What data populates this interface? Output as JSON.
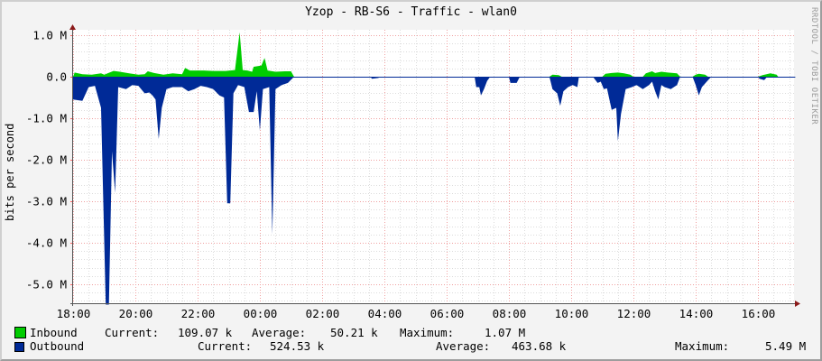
{
  "title": "Yzop - RB-S6 - Traffic - wlan0",
  "watermark": "RRDTOOL / TOBI OETIKER",
  "chart_data": {
    "type": "area",
    "title": "Yzop - RB-S6 - Traffic - wlan0",
    "xlabel": "",
    "ylabel": "bits per second",
    "x_ticks": [
      "18:00",
      "20:00",
      "22:00",
      "00:00",
      "02:00",
      "04:00",
      "06:00",
      "08:00",
      "10:00",
      "12:00",
      "14:00",
      "16:00"
    ],
    "y_ticks": [
      "1.0 M",
      "0.0",
      "-1.0 M",
      "-2.0 M",
      "-3.0 M",
      "-4.0 M",
      "-5.0 M"
    ],
    "y_tick_values": [
      1.0,
      0.0,
      -1.0,
      -2.0,
      -3.0,
      -4.0,
      -5.0
    ],
    "ylim": [
      -5.45,
      1.0
    ],
    "x_unit": "hours since 18:00",
    "xlim": [
      0,
      23.2
    ],
    "grid": true,
    "legend_position": "bottom",
    "series": [
      {
        "name": "Inbound",
        "color": "#00cc00",
        "direction": "positive",
        "current": "109.07 k",
        "average": "50.21 k",
        "maximum": "1.07 M",
        "points": [
          [
            0.0,
            0.0
          ],
          [
            0.05,
            0.1
          ],
          [
            0.3,
            0.06
          ],
          [
            0.6,
            0.05
          ],
          [
            0.9,
            0.08
          ],
          [
            1.0,
            0.05
          ],
          [
            1.3,
            0.14
          ],
          [
            1.5,
            0.12
          ],
          [
            1.8,
            0.08
          ],
          [
            2.1,
            0.05
          ],
          [
            2.3,
            0.06
          ],
          [
            2.4,
            0.13
          ],
          [
            2.6,
            0.09
          ],
          [
            2.9,
            0.05
          ],
          [
            3.2,
            0.08
          ],
          [
            3.5,
            0.06
          ],
          [
            3.6,
            0.21
          ],
          [
            3.75,
            0.15
          ],
          [
            4.2,
            0.15
          ],
          [
            4.5,
            0.14
          ],
          [
            4.9,
            0.14
          ],
          [
            5.05,
            0.15
          ],
          [
            5.2,
            0.16
          ],
          [
            5.35,
            1.07
          ],
          [
            5.45,
            0.16
          ],
          [
            5.6,
            0.15
          ],
          [
            5.75,
            0.12
          ],
          [
            5.8,
            0.24
          ],
          [
            6.05,
            0.27
          ],
          [
            6.15,
            0.45
          ],
          [
            6.25,
            0.15
          ],
          [
            6.5,
            0.12
          ],
          [
            6.8,
            0.13
          ],
          [
            7.0,
            0.13
          ],
          [
            7.1,
            0.0
          ],
          [
            9.0,
            0.0
          ],
          [
            15.3,
            0.0
          ],
          [
            15.4,
            0.05
          ],
          [
            15.6,
            0.04
          ],
          [
            15.7,
            0.0
          ],
          [
            17.0,
            0.0
          ],
          [
            17.1,
            0.07
          ],
          [
            17.3,
            0.09
          ],
          [
            17.5,
            0.1
          ],
          [
            17.7,
            0.08
          ],
          [
            17.9,
            0.05
          ],
          [
            18.0,
            0.0
          ],
          [
            18.3,
            0.0
          ],
          [
            18.4,
            0.08
          ],
          [
            18.6,
            0.13
          ],
          [
            18.7,
            0.09
          ],
          [
            18.9,
            0.12
          ],
          [
            19.1,
            0.1
          ],
          [
            19.4,
            0.08
          ],
          [
            19.5,
            0.0
          ],
          [
            19.9,
            0.0
          ],
          [
            20.0,
            0.05
          ],
          [
            20.1,
            0.07
          ],
          [
            20.3,
            0.05
          ],
          [
            20.4,
            0.0
          ],
          [
            22.0,
            0.0
          ],
          [
            22.15,
            0.04
          ],
          [
            22.4,
            0.08
          ],
          [
            22.6,
            0.05
          ],
          [
            22.65,
            0.0
          ],
          [
            23.0,
            0.0
          ],
          [
            23.2,
            0.0
          ]
        ]
      },
      {
        "name": "Outbound",
        "color": "#002a97",
        "direction": "negative",
        "current": "524.53 k",
        "average": "463.68 k",
        "maximum": "5.49 M",
        "points": [
          [
            0.0,
            -0.55
          ],
          [
            0.3,
            -0.58
          ],
          [
            0.5,
            -0.25
          ],
          [
            0.7,
            -0.22
          ],
          [
            0.9,
            -0.75
          ],
          [
            1.05,
            -5.49
          ],
          [
            1.15,
            -5.49
          ],
          [
            1.25,
            -1.8
          ],
          [
            1.35,
            -2.8
          ],
          [
            1.45,
            -0.25
          ],
          [
            1.7,
            -0.3
          ],
          [
            1.9,
            -0.2
          ],
          [
            2.1,
            -0.22
          ],
          [
            2.3,
            -0.4
          ],
          [
            2.45,
            -0.38
          ],
          [
            2.55,
            -0.45
          ],
          [
            2.65,
            -0.55
          ],
          [
            2.75,
            -1.5
          ],
          [
            2.85,
            -0.75
          ],
          [
            3.0,
            -0.3
          ],
          [
            3.2,
            -0.25
          ],
          [
            3.5,
            -0.25
          ],
          [
            3.7,
            -0.35
          ],
          [
            3.9,
            -0.3
          ],
          [
            4.1,
            -0.22
          ],
          [
            4.3,
            -0.25
          ],
          [
            4.5,
            -0.3
          ],
          [
            4.7,
            -0.45
          ],
          [
            4.85,
            -0.5
          ],
          [
            4.95,
            -3.05
          ],
          [
            5.05,
            -3.05
          ],
          [
            5.15,
            -0.4
          ],
          [
            5.3,
            -0.2
          ],
          [
            5.5,
            -0.25
          ],
          [
            5.65,
            -0.85
          ],
          [
            5.8,
            -0.85
          ],
          [
            5.9,
            -0.35
          ],
          [
            6.0,
            -1.3
          ],
          [
            6.1,
            -0.3
          ],
          [
            6.3,
            -0.25
          ],
          [
            6.4,
            -3.8
          ],
          [
            6.5,
            -0.3
          ],
          [
            6.7,
            -0.2
          ],
          [
            6.9,
            -0.15
          ],
          [
            7.1,
            0.0
          ],
          [
            9.5,
            0.0
          ],
          [
            9.55,
            0.0
          ],
          [
            9.6,
            -0.05
          ],
          [
            9.8,
            -0.03
          ],
          [
            9.9,
            0.0
          ],
          [
            12.5,
            0.0
          ],
          [
            12.9,
            0.0
          ],
          [
            12.95,
            -0.25
          ],
          [
            13.05,
            -0.25
          ],
          [
            13.1,
            -0.45
          ],
          [
            13.2,
            -0.3
          ],
          [
            13.3,
            -0.1
          ],
          [
            13.4,
            0.0
          ],
          [
            14.0,
            0.0
          ],
          [
            14.05,
            -0.15
          ],
          [
            14.25,
            -0.15
          ],
          [
            14.35,
            0.0
          ],
          [
            15.3,
            0.0
          ],
          [
            15.4,
            -0.3
          ],
          [
            15.55,
            -0.4
          ],
          [
            15.65,
            -0.7
          ],
          [
            15.75,
            -0.35
          ],
          [
            15.9,
            -0.25
          ],
          [
            16.05,
            -0.2
          ],
          [
            16.2,
            -0.25
          ],
          [
            16.25,
            0.0
          ],
          [
            16.7,
            0.0
          ],
          [
            16.8,
            -0.1
          ],
          [
            16.85,
            -0.15
          ],
          [
            16.95,
            -0.12
          ],
          [
            17.05,
            -0.3
          ],
          [
            17.15,
            -0.28
          ],
          [
            17.3,
            -0.8
          ],
          [
            17.45,
            -0.75
          ],
          [
            17.5,
            -1.55
          ],
          [
            17.6,
            -0.9
          ],
          [
            17.75,
            -0.3
          ],
          [
            17.95,
            -0.25
          ],
          [
            18.1,
            -0.2
          ],
          [
            18.3,
            -0.3
          ],
          [
            18.5,
            -0.2
          ],
          [
            18.6,
            -0.12
          ],
          [
            18.7,
            -0.35
          ],
          [
            18.8,
            -0.55
          ],
          [
            18.9,
            -0.2
          ],
          [
            19.0,
            -0.25
          ],
          [
            19.2,
            -0.3
          ],
          [
            19.4,
            -0.2
          ],
          [
            19.5,
            0.0
          ],
          [
            19.9,
            0.0
          ],
          [
            20.0,
            -0.2
          ],
          [
            20.1,
            -0.45
          ],
          [
            20.2,
            -0.25
          ],
          [
            20.4,
            -0.08
          ],
          [
            20.5,
            0.0
          ],
          [
            22.0,
            0.0
          ],
          [
            22.05,
            -0.05
          ],
          [
            22.2,
            -0.08
          ],
          [
            22.3,
            0.0
          ],
          [
            22.8,
            0.0
          ],
          [
            23.2,
            0.0
          ]
        ]
      }
    ]
  },
  "legend": {
    "inbound": {
      "label": "Inbound",
      "current_label": "Current:",
      "current": "109.07 k",
      "average_label": "Average:",
      "average": "50.21 k",
      "maximum_label": "Maximum:",
      "maximum": "1.07 M",
      "color": "#00cc00"
    },
    "outbound": {
      "label": "Outbound",
      "current_label": "Current:",
      "current": "524.53 k",
      "average_label": "Average:",
      "average": "463.68 k",
      "maximum_label": "Maximum:",
      "maximum": "5.49 M",
      "color": "#002a97"
    }
  }
}
